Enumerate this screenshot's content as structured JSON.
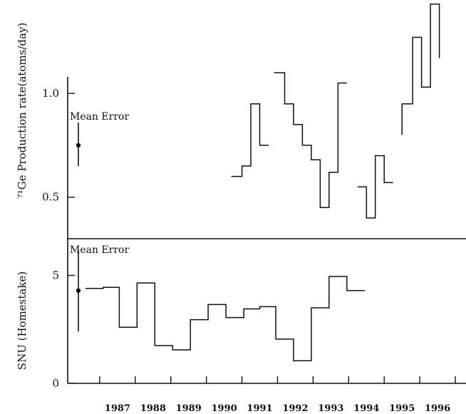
{
  "chart_data": [
    {
      "type": "line",
      "subtype": "step",
      "ylabel": "⁷¹Ge Production rate(atoms/day)",
      "xlabel": "",
      "ylim": [
        0.3,
        1.45
      ],
      "yticks": [
        0.5,
        1.0
      ],
      "ytick_labels": [
        "0.5",
        "1.0"
      ],
      "xlim": [
        1986.1,
        1997.3
      ],
      "mean_error": {
        "label": "Mean Error",
        "x": 1986.4,
        "y": 0.75,
        "low": 0.65,
        "high": 0.86
      },
      "series": [
        {
          "points": [
            [
              1990.7,
              0.6
            ],
            [
              1991.0,
              0.6
            ],
            [
              1991.0,
              0.65
            ],
            [
              1991.25,
              0.65
            ],
            [
              1991.25,
              0.95
            ],
            [
              1991.5,
              0.95
            ],
            [
              1991.5,
              0.75
            ],
            [
              1991.75,
              0.75
            ]
          ]
        },
        {
          "points": [
            [
              1991.9,
              1.1
            ],
            [
              1992.2,
              1.1
            ],
            [
              1992.2,
              0.95
            ],
            [
              1992.45,
              0.95
            ],
            [
              1992.45,
              0.85
            ],
            [
              1992.7,
              0.85
            ],
            [
              1992.7,
              0.75
            ],
            [
              1992.95,
              0.75
            ],
            [
              1992.95,
              0.68
            ],
            [
              1993.2,
              0.68
            ],
            [
              1993.2,
              0.45
            ],
            [
              1993.45,
              0.45
            ],
            [
              1993.45,
              0.62
            ],
            [
              1993.7,
              0.62
            ],
            [
              1993.7,
              1.05
            ],
            [
              1993.95,
              1.05
            ]
          ]
        },
        {
          "points": [
            [
              1994.25,
              0.55
            ],
            [
              1994.5,
              0.55
            ],
            [
              1994.5,
              0.4
            ],
            [
              1994.75,
              0.4
            ],
            [
              1994.75,
              0.7
            ],
            [
              1995.0,
              0.7
            ],
            [
              1995.0,
              0.57
            ],
            [
              1995.25,
              0.57
            ]
          ]
        },
        {
          "points": [
            [
              1995.5,
              0.8
            ],
            [
              1995.5,
              0.95
            ],
            [
              1995.8,
              0.95
            ],
            [
              1995.8,
              1.27
            ],
            [
              1996.05,
              1.27
            ],
            [
              1996.05,
              1.03
            ],
            [
              1996.3,
              1.03
            ],
            [
              1996.3,
              1.43
            ],
            [
              1996.55,
              1.43
            ],
            [
              1996.55,
              1.17
            ]
          ]
        }
      ]
    },
    {
      "type": "line",
      "subtype": "step",
      "ylabel": "SNU (Homestake)",
      "xlabel": "",
      "ylim": [
        0,
        6.7
      ],
      "yticks": [
        0,
        5
      ],
      "ytick_labels": [
        "0",
        "5"
      ],
      "xlim": [
        1986.1,
        1997.3
      ],
      "categories": [
        "1987",
        "1988",
        "1989",
        "1990",
        "1991",
        "1992",
        "1993",
        "1994",
        "1995",
        "1996"
      ],
      "mean_error": {
        "label": "Mean Error",
        "x": 1986.4,
        "y": 4.3,
        "low": 2.4,
        "high": 6.2
      },
      "series": [
        {
          "points": [
            [
              1986.6,
              4.4
            ],
            [
              1987.1,
              4.4
            ],
            [
              1987.1,
              4.45
            ],
            [
              1987.55,
              4.45
            ],
            [
              1987.55,
              2.6
            ],
            [
              1988.05,
              2.6
            ],
            [
              1988.05,
              4.65
            ],
            [
              1988.55,
              4.65
            ],
            [
              1988.55,
              1.75
            ],
            [
              1989.05,
              1.75
            ],
            [
              1989.05,
              1.55
            ],
            [
              1989.55,
              1.55
            ],
            [
              1989.55,
              2.95
            ],
            [
              1990.05,
              2.95
            ],
            [
              1990.05,
              3.65
            ],
            [
              1990.55,
              3.65
            ],
            [
              1990.55,
              3.05
            ],
            [
              1991.05,
              3.05
            ],
            [
              1991.05,
              3.45
            ],
            [
              1991.5,
              3.45
            ],
            [
              1991.5,
              3.55
            ],
            [
              1991.95,
              3.55
            ],
            [
              1991.95,
              2.05
            ],
            [
              1992.45,
              2.05
            ],
            [
              1992.45,
              1.05
            ],
            [
              1992.95,
              1.05
            ],
            [
              1992.95,
              3.5
            ],
            [
              1993.45,
              3.5
            ],
            [
              1993.45,
              4.95
            ],
            [
              1993.95,
              4.95
            ],
            [
              1993.95,
              4.3
            ],
            [
              1994.45,
              4.3
            ]
          ]
        }
      ]
    }
  ],
  "year_ticks_printed": [
    "1987",
    "1988",
    "1989",
    "1990",
    "1991",
    "1992",
    "1993",
    "1994",
    "1995",
    "1996"
  ]
}
